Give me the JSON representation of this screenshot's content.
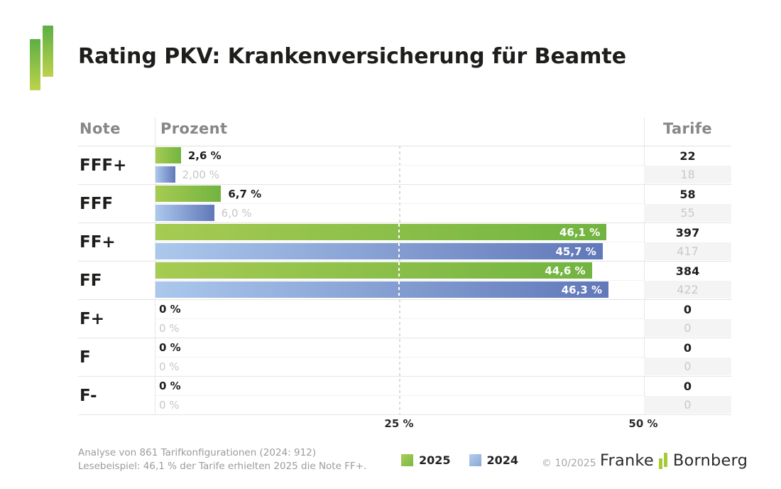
{
  "title": "Rating PKV: Krankenversicherung für Beamte",
  "table": {
    "columns": {
      "note": "Note",
      "prozent": "Prozent",
      "tarife": "Tarife"
    },
    "rows": [
      {
        "note": "FFF+",
        "y2025": {
          "pct": 2.6,
          "label": "2,6 %",
          "tarife": "22"
        },
        "y2024": {
          "pct": 2.0,
          "label": "2,00 %",
          "tarife": "18"
        }
      },
      {
        "note": "FFF",
        "y2025": {
          "pct": 6.7,
          "label": "6,7 %",
          "tarife": "58"
        },
        "y2024": {
          "pct": 6.0,
          "label": "6,0 %",
          "tarife": "55"
        }
      },
      {
        "note": "FF+",
        "y2025": {
          "pct": 46.1,
          "label": "46,1 %",
          "tarife": "397"
        },
        "y2024": {
          "pct": 45.7,
          "label": "45,7 %",
          "tarife": "417"
        }
      },
      {
        "note": "FF",
        "y2025": {
          "pct": 44.6,
          "label": "44,6 %",
          "tarife": "384"
        },
        "y2024": {
          "pct": 46.3,
          "label": "46,3 %",
          "tarife": "422"
        }
      },
      {
        "note": "F+",
        "y2025": {
          "pct": 0,
          "label": "0 %",
          "tarife": "0"
        },
        "y2024": {
          "pct": 0,
          "label": "0 %",
          "tarife": "0"
        }
      },
      {
        "note": "F",
        "y2025": {
          "pct": 0,
          "label": "0 %",
          "tarife": "0"
        },
        "y2024": {
          "pct": 0,
          "label": "0 %",
          "tarife": "0"
        }
      },
      {
        "note": "F-",
        "y2025": {
          "pct": 0,
          "label": "0 %",
          "tarife": "0"
        },
        "y2024": {
          "pct": 0,
          "label": "0 %",
          "tarife": "0"
        }
      }
    ]
  },
  "axis": {
    "tick_25": "25 %",
    "tick_50": "50 %"
  },
  "legend": {
    "items": [
      {
        "label": "2025",
        "color": "#85ba47"
      },
      {
        "label": "2024",
        "color": "#93aedd"
      }
    ]
  },
  "footer": {
    "note_line1": "Analyse von 861 Tarifkonfigurationen (2024: 912)",
    "note_line2": "Lesebeispiel: 46,1 % der Tarife erhielten 2025 die Note FF+.",
    "copyright": "© 10/2025",
    "brand_left": "Franke",
    "brand_right": "Bornberg"
  },
  "colors": {
    "green_bar_start": "#a6cb52",
    "green_bar_end": "#72b441",
    "blue_bar_start": "#abc8ec",
    "blue_bar_end": "#6178b9",
    "logo_green_top": "#5caf45",
    "logo_green_bottom": "#bed24a",
    "brand_green": "#a5cb39"
  },
  "chart_data": {
    "type": "bar",
    "orientation": "horizontal",
    "title": "Rating PKV: Krankenversicherung für Beamte",
    "categories": [
      "FFF+",
      "FFF",
      "FF+",
      "FF",
      "F+",
      "F",
      "F-"
    ],
    "series": [
      {
        "name": "2025",
        "values": [
          2.6,
          6.7,
          46.1,
          44.6,
          0,
          0,
          0
        ],
        "value_labels": [
          "2,6 %",
          "6,7 %",
          "46,1 %",
          "44,6 %",
          "0 %",
          "0 %",
          "0 %"
        ],
        "tarife_counts": [
          22,
          58,
          397,
          384,
          0,
          0,
          0
        ],
        "color": "#85ba47"
      },
      {
        "name": "2024",
        "values": [
          2.0,
          6.0,
          45.7,
          46.3,
          0,
          0,
          0
        ],
        "value_labels": [
          "2,00 %",
          "6,0 %",
          "45,7 %",
          "46,3 %",
          "0 %",
          "0 %",
          "0 %"
        ],
        "tarife_counts": [
          18,
          55,
          417,
          422,
          0,
          0,
          0
        ],
        "color": "#93aedd"
      }
    ],
    "xlabel": "Prozent",
    "xlim": [
      0,
      50
    ],
    "xticks": [
      25,
      50
    ],
    "gridline_at": 25,
    "legend_position": "bottom",
    "annotations": [
      "Analyse von 861 Tarifkonfigurationen (2024: 912)",
      "Lesebeispiel: 46,1 % der Tarife erhielten 2025 die Note FF+."
    ]
  }
}
